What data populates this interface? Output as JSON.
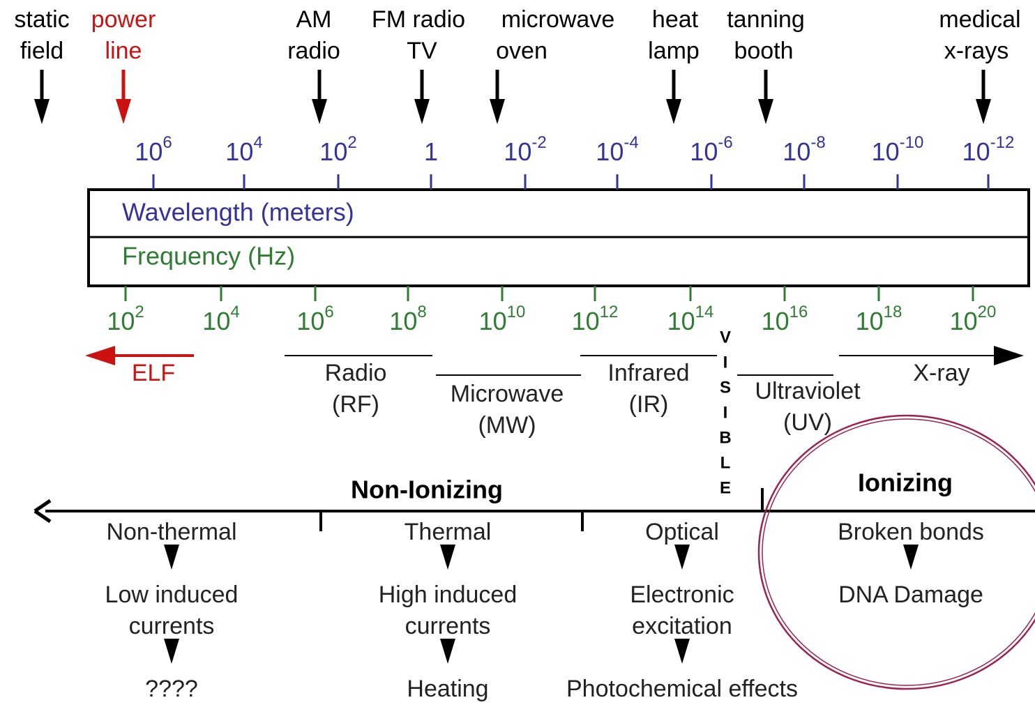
{
  "sources": [
    {
      "lines": [
        "static",
        "field"
      ]
    },
    {
      "lines": [
        "power",
        "line"
      ]
    },
    {
      "lines": [
        "AM",
        "radio"
      ]
    },
    {
      "lines": [
        "FM radio",
        "TV"
      ]
    },
    {
      "lines": [
        "microwave",
        "oven"
      ]
    },
    {
      "lines": [
        "heat",
        "lamp"
      ]
    },
    {
      "lines": [
        "tanning",
        "booth"
      ]
    },
    {
      "lines": [
        "medical",
        "x-rays"
      ]
    }
  ],
  "wavelength": {
    "label": "Wavelength (meters)",
    "ticks": [
      {
        "base": "10",
        "exp": "6"
      },
      {
        "base": "10",
        "exp": "4"
      },
      {
        "base": "10",
        "exp": "2"
      },
      {
        "base": "1"
      },
      {
        "base": "10",
        "exp": "-2"
      },
      {
        "base": "10",
        "exp": "-4"
      },
      {
        "base": "10",
        "exp": "-6"
      },
      {
        "base": "10",
        "exp": "-8"
      },
      {
        "base": "10",
        "exp": "-10"
      },
      {
        "base": "10",
        "exp": "-12"
      }
    ]
  },
  "frequency": {
    "label": "Frequency (Hz)",
    "ticks": [
      {
        "base": "10",
        "exp": "2"
      },
      {
        "base": "10",
        "exp": "4"
      },
      {
        "base": "10",
        "exp": "6"
      },
      {
        "base": "10",
        "exp": "8"
      },
      {
        "base": "10",
        "exp": "10"
      },
      {
        "base": "10",
        "exp": "12"
      },
      {
        "base": "10",
        "exp": "14"
      },
      {
        "base": "10",
        "exp": "16"
      },
      {
        "base": "10",
        "exp": "18"
      },
      {
        "base": "10",
        "exp": "20"
      }
    ]
  },
  "bands": [
    {
      "lines": [
        "ELF"
      ]
    },
    {
      "lines": [
        "Radio",
        "(RF)"
      ]
    },
    {
      "lines": [
        "Microwave",
        "(MW)"
      ]
    },
    {
      "lines": [
        "Infrared",
        "(IR)"
      ]
    },
    {
      "lines": [
        "Ultraviolet",
        "(UV)"
      ]
    },
    {
      "lines": [
        "X-ray"
      ]
    }
  ],
  "visible": [
    "V",
    "I",
    "S",
    "I",
    "B",
    "L",
    "E"
  ],
  "classes": {
    "non_ionizing": "Non-Ionizing",
    "ionizing": "Ionizing"
  },
  "effects": [
    {
      "steps": [
        [
          "Non-thermal"
        ],
        [
          "Low induced",
          "currents"
        ],
        [
          "????"
        ]
      ]
    },
    {
      "steps": [
        [
          "Thermal"
        ],
        [
          "High induced",
          "currents"
        ],
        [
          "Heating"
        ]
      ]
    },
    {
      "steps": [
        [
          "Optical"
        ],
        [
          "Electronic",
          "excitation"
        ],
        [
          "Photochemical effects"
        ]
      ]
    },
    {
      "steps": [
        [
          "Broken bonds"
        ],
        [
          "DNA Damage"
        ]
      ]
    }
  ]
}
